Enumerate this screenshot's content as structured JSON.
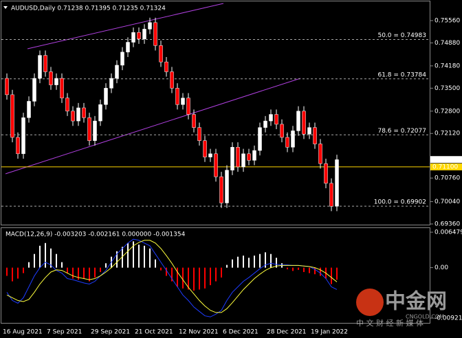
{
  "chart_data": [
    {
      "type": "candlestick",
      "title": "AUDUSD,Daily  0.71238 0.71395 0.71235 0.71324",
      "x_labels": [
        "16 Aug 2021",
        "7 Sep 2021",
        "29 Sep 2021",
        "21 Oct 2021",
        "12 Nov 2021",
        "6 Dec 2021",
        "28 Dec 2021",
        "19 Jan 2022"
      ],
      "open": [
        0.738,
        0.733,
        0.72,
        0.715,
        0.726,
        0.731,
        0.738,
        0.745,
        0.74,
        0.736,
        0.738,
        0.732,
        0.728,
        0.725,
        0.729,
        0.726,
        0.719,
        0.725,
        0.73,
        0.735,
        0.738,
        0.742,
        0.746,
        0.749,
        0.752,
        0.75,
        0.753,
        0.755,
        0.748,
        0.743,
        0.74,
        0.735,
        0.73,
        0.732,
        0.727,
        0.723,
        0.719,
        0.714,
        0.715,
        0.708,
        0.7,
        0.71,
        0.717,
        0.711,
        0.715,
        0.713,
        0.716,
        0.723,
        0.725,
        0.727,
        0.724,
        0.72,
        0.717,
        0.722,
        0.728,
        0.721,
        0.723,
        0.718,
        0.712,
        0.706,
        0.699
      ],
      "high": [
        0.7395,
        0.7345,
        0.7215,
        0.7275,
        0.7325,
        0.7395,
        0.7465,
        0.7465,
        0.7415,
        0.7395,
        0.7395,
        0.7335,
        0.7295,
        0.7305,
        0.7305,
        0.7275,
        0.7265,
        0.7315,
        0.7365,
        0.7395,
        0.7435,
        0.7475,
        0.7505,
        0.7535,
        0.7535,
        0.7545,
        0.7565,
        0.7565,
        0.7495,
        0.7445,
        0.7415,
        0.7365,
        0.7335,
        0.7335,
        0.7285,
        0.7245,
        0.7205,
        0.7165,
        0.7165,
        0.7095,
        0.7115,
        0.7185,
        0.7185,
        0.7165,
        0.7165,
        0.7175,
        0.7245,
        0.7265,
        0.7285,
        0.7285,
        0.7255,
        0.7215,
        0.7235,
        0.7295,
        0.7295,
        0.7245,
        0.7245,
        0.7195,
        0.7135,
        0.7075,
        0.7147
      ],
      "low": [
        0.7315,
        0.7185,
        0.7135,
        0.7135,
        0.7245,
        0.7295,
        0.7365,
        0.7385,
        0.7345,
        0.7345,
        0.7305,
        0.7265,
        0.7235,
        0.7235,
        0.7245,
        0.7175,
        0.7175,
        0.7235,
        0.7285,
        0.7335,
        0.7365,
        0.7405,
        0.7445,
        0.7475,
        0.7485,
        0.7485,
        0.7515,
        0.7465,
        0.7415,
        0.7385,
        0.7335,
        0.7285,
        0.7285,
        0.7255,
        0.7215,
        0.7175,
        0.7125,
        0.7125,
        0.7065,
        0.6985,
        0.6985,
        0.7085,
        0.7095,
        0.7095,
        0.7115,
        0.7115,
        0.7145,
        0.7215,
        0.7235,
        0.7225,
        0.7185,
        0.7155,
        0.7155,
        0.7205,
        0.7195,
        0.7195,
        0.7165,
        0.7105,
        0.7045,
        0.6975,
        0.6975
      ],
      "close": [
        0.733,
        0.72,
        0.715,
        0.726,
        0.731,
        0.738,
        0.745,
        0.74,
        0.736,
        0.738,
        0.732,
        0.728,
        0.725,
        0.729,
        0.726,
        0.719,
        0.725,
        0.73,
        0.735,
        0.738,
        0.742,
        0.746,
        0.749,
        0.752,
        0.75,
        0.753,
        0.755,
        0.748,
        0.743,
        0.74,
        0.735,
        0.73,
        0.732,
        0.727,
        0.723,
        0.719,
        0.714,
        0.715,
        0.708,
        0.7,
        0.71,
        0.717,
        0.711,
        0.715,
        0.713,
        0.716,
        0.723,
        0.725,
        0.727,
        0.724,
        0.72,
        0.717,
        0.722,
        0.728,
        0.721,
        0.723,
        0.718,
        0.712,
        0.706,
        0.699,
        0.7132
      ],
      "colors": {
        "up": "#ffffff",
        "down": "#ff0000",
        "wick": "#ffffff"
      },
      "ylim": [
        0.6936,
        0.7556
      ],
      "yticks": [
        {
          "value": 0.7556,
          "label": "0.75560"
        },
        {
          "value": 0.7488,
          "label": "0.74880"
        },
        {
          "value": 0.7418,
          "label": "0.74180"
        },
        {
          "value": 0.735,
          "label": "0.73500"
        },
        {
          "value": 0.728,
          "label": "0.72800"
        },
        {
          "value": 0.7212,
          "label": "0.72120"
        },
        {
          "value": 0.7076,
          "label": "0.70760"
        },
        {
          "value": 0.7004,
          "label": "0.70040"
        },
        {
          "value": 0.6936,
          "label": "0.69360"
        }
      ],
      "fib_levels": [
        {
          "label": "50.0 = 0.74983",
          "price": 0.74983
        },
        {
          "label": "61.8 = 0.73784",
          "price": 0.73784
        },
        {
          "label": "78.6 = 0.72077",
          "price": 0.72077
        },
        {
          "label": "100.0 = 0.69902",
          "price": 0.69902
        }
      ],
      "price_tags": [
        {
          "label": "0.71324",
          "price": 0.71324,
          "color": "#ffffff"
        },
        {
          "label": "0.71100",
          "price": 0.711,
          "color": "#ffd700"
        }
      ]
    },
    {
      "type": "macd",
      "title": "MACD(12,26,9) -0.003203 -0.002161 0.000000 -0.001354",
      "ylim": [
        -0.009215,
        0.006479
      ],
      "yticks": [
        0.006479,
        {
          "value": 0,
          "label": "0.00"
        },
        -0.009215
      ],
      "histogram": {
        "colors": {
          "up": "#ffffff",
          "down": "#ff0000"
        },
        "values": [
          -0.0015,
          -0.0025,
          -0.002,
          -0.001,
          0.001,
          0.0025,
          0.004,
          0.0045,
          0.0035,
          0.0025,
          0.001,
          -0.001,
          -0.002,
          -0.0022,
          -0.002,
          -0.0025,
          -0.0018,
          -0.0008,
          0.0008,
          0.002,
          0.003,
          0.0038,
          0.0045,
          0.0048,
          0.0042,
          0.004,
          0.0035,
          0.0015,
          -0.0005,
          -0.0015,
          -0.0025,
          -0.0035,
          -0.0038,
          -0.004,
          -0.0042,
          -0.004,
          -0.0038,
          -0.0032,
          -0.0025,
          -0.0018,
          0.0005,
          0.0015,
          0.002,
          0.0022,
          0.0018,
          0.0022,
          0.0025,
          0.0028,
          0.0025,
          0.0018,
          0.0008,
          -0.0003,
          -0.0006,
          -0.0004,
          -0.0008,
          -0.001,
          -0.0012,
          -0.0015,
          -0.002,
          -0.003,
          -0.0022
        ]
      },
      "series": [
        {
          "color": "#1e3cff",
          "values": [
            -0.0045,
            -0.006,
            -0.0065,
            -0.0055,
            -0.0035,
            -0.0015,
            0,
            0.001,
            0.0005,
            -0.0005,
            -0.001,
            -0.002,
            -0.0022,
            -0.0025,
            -0.0028,
            -0.003,
            -0.0025,
            -0.0015,
            -0.0005,
            0.001,
            0.0025,
            0.0035,
            0.0045,
            0.0052,
            0.005,
            0.0045,
            0.004,
            0.0025,
            0.001,
            -0.0005,
            -0.002,
            -0.0035,
            -0.005,
            -0.006,
            -0.0072,
            -0.008,
            -0.0088,
            -0.009,
            -0.0085,
            -0.0078,
            -0.006,
            -0.0045,
            -0.0035,
            -0.0025,
            -0.0018,
            -0.001,
            -0.0002,
            0.0005,
            0.0008,
            0.0006,
            0.0005,
            0.0005,
            0.0004,
            0.0004,
            0.0003,
            0.0002,
            -0.0003,
            -0.001,
            -0.002,
            -0.0035,
            -0.004
          ]
        },
        {
          "color": "#ffff3c",
          "values": [
            -0.005,
            -0.0055,
            -0.006,
            -0.0062,
            -0.0058,
            -0.0045,
            -0.003,
            -0.0018,
            -0.0008,
            -0.0004,
            -0.0005,
            -0.001,
            -0.0015,
            -0.0018,
            -0.002,
            -0.0022,
            -0.002,
            -0.0015,
            -0.0008,
            0,
            0.001,
            0.002,
            0.003,
            0.004,
            0.0046,
            0.005,
            0.005,
            0.0045,
            0.0035,
            0.0022,
            0.0008,
            -0.0008,
            -0.0022,
            -0.0036,
            -0.0048,
            -0.006,
            -0.007,
            -0.0078,
            -0.0082,
            -0.0082,
            -0.0075,
            -0.0064,
            -0.0052,
            -0.004,
            -0.003,
            -0.002,
            -0.0012,
            -0.0005,
            0,
            0.0003,
            0.0004,
            0.0004,
            0.0004,
            0.0004,
            0.0003,
            0.0002,
            0,
            -0.0004,
            -0.001,
            -0.0018,
            -0.0026
          ]
        }
      ]
    }
  ],
  "watermark": {
    "brand": "中金网",
    "site": "CNGOLD.COM",
    "slogan": "中 文 财 经 新 媒 体"
  }
}
